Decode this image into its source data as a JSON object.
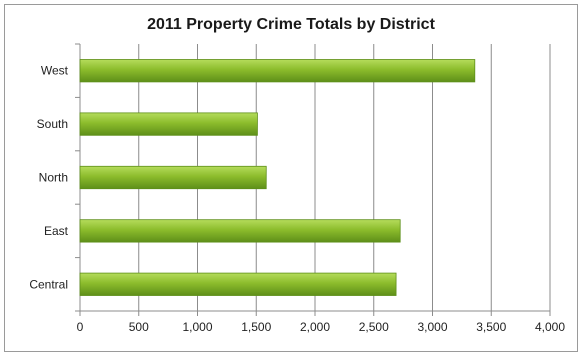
{
  "chart_data": {
    "type": "bar",
    "orientation": "horizontal",
    "title": "2011 Property Crime Totals by District",
    "xlabel": "",
    "ylabel": "",
    "categories": [
      "West",
      "South",
      "North",
      "East",
      "Central"
    ],
    "values": [
      3360,
      1510,
      1585,
      2725,
      2690
    ],
    "xlim": [
      0,
      4000
    ],
    "x_ticks": [
      "0",
      "500",
      "1,000",
      "1,500",
      "2,000",
      "2,500",
      "3,000",
      "3,500",
      "4,000"
    ],
    "grid": "vertical",
    "legend": "none",
    "bar_color": "#8cbc2c",
    "bar_color_dark": "#5e8f19",
    "bar_color_light": "#b5dc5c"
  }
}
